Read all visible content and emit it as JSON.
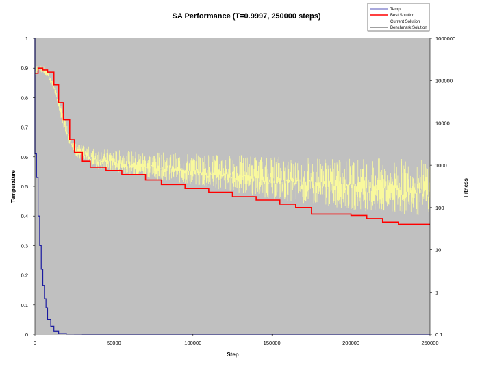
{
  "chart_data": {
    "type": "line",
    "title": "SA Performance (T=0.9997, 250000 steps)",
    "xlabel": "Step",
    "ylabel_left": "Temperature",
    "ylabel_right": "Fitness",
    "xlim": [
      0,
      250000
    ],
    "ylim_left": [
      0,
      1
    ],
    "ylim_right": [
      0.1,
      1000000
    ],
    "right_axis_scale": "log",
    "grid": false,
    "plot_background": "#c0c0c0",
    "legend_position": "top-right",
    "x_ticks": [
      "0",
      "50000",
      "100000",
      "150000",
      "200000",
      "250000"
    ],
    "left_ticks": [
      "0",
      "0.1",
      "0.2",
      "0.3",
      "0.4",
      "0.5",
      "0.6",
      "0.7",
      "0.8",
      "0.9",
      "1"
    ],
    "right_ticks": [
      "0.1",
      "1",
      "10",
      "100",
      "1000",
      "10000",
      "100000",
      "1000000"
    ],
    "series": [
      {
        "name": "Temp",
        "axis": "left",
        "color": "#1a1aa0",
        "x": [
          0,
          1000,
          2000,
          3000,
          4000,
          5000,
          6000,
          7000,
          8000,
          10000,
          12000,
          15000,
          20000,
          25000,
          30000,
          250000
        ],
        "y": [
          1.0,
          0.61,
          0.53,
          0.4,
          0.3,
          0.22,
          0.165,
          0.12,
          0.09,
          0.05,
          0.027,
          0.011,
          0.002,
          0.0005,
          0.0001,
          0
        ]
      },
      {
        "name": "Best Solution",
        "axis": "right",
        "color": "#ff0000",
        "x": [
          0,
          2000,
          5000,
          8000,
          12000,
          15000,
          18000,
          22000,
          25000,
          30000,
          35000,
          45000,
          55000,
          70000,
          80000,
          95000,
          110000,
          125000,
          140000,
          155000,
          165000,
          175000,
          185000,
          200000,
          210000,
          220000,
          230000,
          250000
        ],
        "y": [
          150000,
          200000,
          180000,
          160000,
          80000,
          30000,
          12000,
          4000,
          2000,
          1250,
          900,
          750,
          600,
          450,
          350,
          280,
          230,
          180,
          150,
          120,
          100,
          70,
          70,
          65,
          55,
          45,
          40,
          40
        ]
      },
      {
        "name": "Current Solution",
        "axis": "right",
        "color": "#ffff99",
        "x": [
          0,
          2000,
          5000,
          8000,
          12000,
          15000,
          18000,
          22000,
          25000,
          30000,
          40000,
          60000,
          80000,
          100000,
          120000,
          150000,
          180000,
          210000,
          230000,
          250000
        ],
        "y_low": [
          130000,
          170000,
          150000,
          120000,
          60000,
          20000,
          8000,
          3000,
          1800,
          1200,
          800,
          600,
          450,
          330,
          250,
          160,
          110,
          80,
          65,
          60
        ],
        "y_high": [
          200000,
          240000,
          220000,
          190000,
          90000,
          40000,
          16000,
          6000,
          3500,
          3000,
          2500,
          2200,
          2000,
          1900,
          1800,
          1700,
          1600,
          1500,
          1450,
          1400
        ]
      },
      {
        "name": "Benchmark Solution",
        "axis": "right",
        "color": "#000000"
      }
    ]
  }
}
